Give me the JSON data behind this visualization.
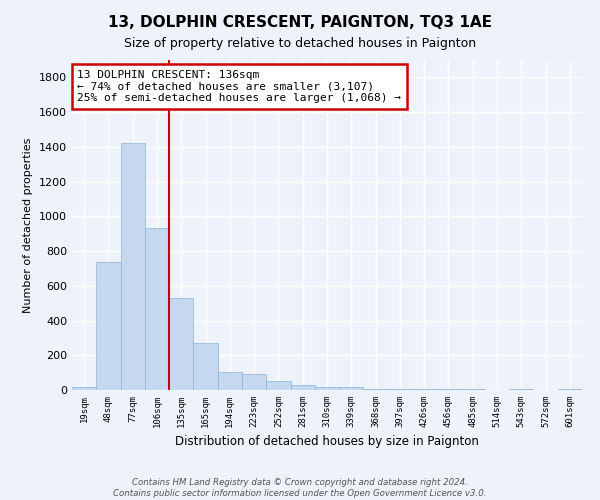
{
  "title": "13, DOLPHIN CRESCENT, PAIGNTON, TQ3 1AE",
  "subtitle": "Size of property relative to detached houses in Paignton",
  "xlabel": "Distribution of detached houses by size in Paignton",
  "ylabel": "Number of detached properties",
  "categories": [
    "19sqm",
    "48sqm",
    "77sqm",
    "106sqm",
    "135sqm",
    "165sqm",
    "194sqm",
    "223sqm",
    "252sqm",
    "281sqm",
    "310sqm",
    "339sqm",
    "368sqm",
    "397sqm",
    "426sqm",
    "456sqm",
    "485sqm",
    "514sqm",
    "543sqm",
    "572sqm",
    "601sqm"
  ],
  "values": [
    20,
    735,
    1425,
    935,
    530,
    270,
    105,
    95,
    50,
    28,
    20,
    15,
    8,
    5,
    3,
    5,
    3,
    2,
    3,
    2,
    8
  ],
  "bar_color": "#c5d8f0",
  "bar_edge_color": "#8ab4d8",
  "annotation_text_line1": "13 DOLPHIN CRESCENT: 136sqm",
  "annotation_text_line2": "← 74% of detached houses are smaller (3,107)",
  "annotation_text_line3": "25% of semi-detached houses are larger (1,068) →",
  "annotation_box_edgecolor": "#cc0000",
  "vline_color": "#cc0000",
  "footer_line1": "Contains HM Land Registry data © Crown copyright and database right 2024.",
  "footer_line2": "Contains public sector information licensed under the Open Government Licence v3.0.",
  "background_color": "#eef2fb",
  "grid_color": "#ffffff",
  "ylim": [
    0,
    1900
  ],
  "yticks": [
    0,
    200,
    400,
    600,
    800,
    1000,
    1200,
    1400,
    1600,
    1800
  ],
  "vline_x": 3.5
}
